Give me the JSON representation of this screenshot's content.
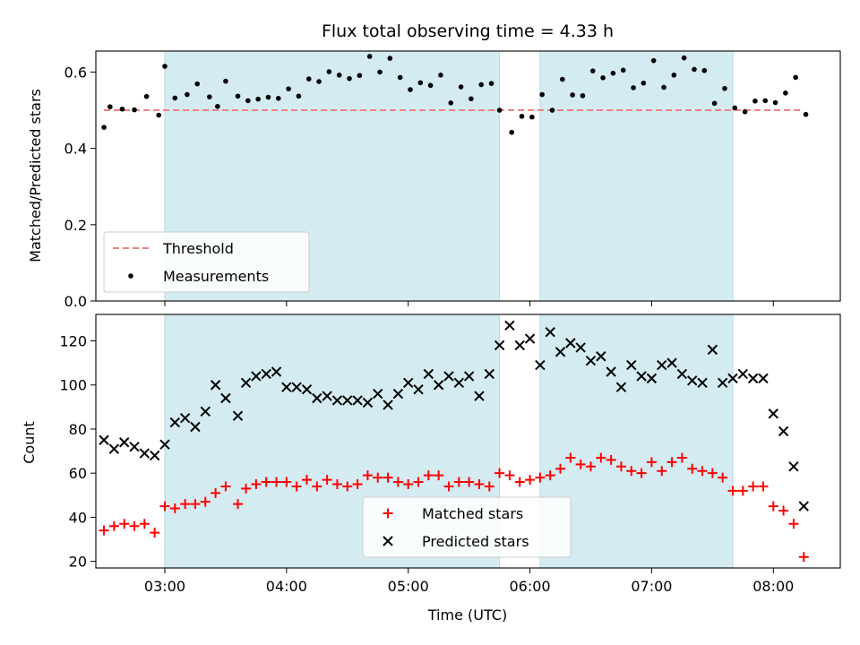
{
  "chart_data": [
    {
      "type": "scatter",
      "title": "Flux total observing time = 4.33 h",
      "ylabel": "Matched/Predicted stars",
      "xlim": [
        "02:26",
        "08:33"
      ],
      "ylim": [
        0,
        0.655
      ],
      "yticks": [
        "0.0",
        "0.2",
        "0.4",
        "0.6"
      ],
      "grid": false,
      "legend_position": "lower-left",
      "shaded_intervals": [
        [
          "03:00",
          "05:45"
        ],
        [
          "06:05",
          "07:40"
        ]
      ],
      "shade_color": "#d4ebf2",
      "threshold": {
        "name": "Threshold",
        "value": 0.5,
        "x_range": [
          "02:30",
          "08:15"
        ],
        "color": "#f08080",
        "style": "dashed"
      },
      "series": [
        {
          "name": "Measurements",
          "marker": "dot",
          "color": "#000000",
          "points": [
            [
              "02:30",
              0.455
            ],
            [
              "02:33",
              0.509
            ],
            [
              "02:39",
              0.503
            ],
            [
              "02:45",
              0.501
            ],
            [
              "02:51",
              0.536
            ],
            [
              "02:57",
              0.487
            ],
            [
              "03:00",
              0.615
            ],
            [
              "03:05",
              0.532
            ],
            [
              "03:11",
              0.541
            ],
            [
              "03:16",
              0.569
            ],
            [
              "03:22",
              0.535
            ],
            [
              "03:26",
              0.51
            ],
            [
              "03:30",
              0.576
            ],
            [
              "03:36",
              0.537
            ],
            [
              "03:41",
              0.525
            ],
            [
              "03:46",
              0.529
            ],
            [
              "03:51",
              0.534
            ],
            [
              "03:56",
              0.531
            ],
            [
              "04:01",
              0.556
            ],
            [
              "04:06",
              0.537
            ],
            [
              "04:11",
              0.582
            ],
            [
              "04:16",
              0.575
            ],
            [
              "04:21",
              0.601
            ],
            [
              "04:26",
              0.592
            ],
            [
              "04:31",
              0.583
            ],
            [
              "04:36",
              0.591
            ],
            [
              "04:41",
              0.641
            ],
            [
              "04:46",
              0.6
            ],
            [
              "04:51",
              0.636
            ],
            [
              "04:56",
              0.586
            ],
            [
              "05:01",
              0.554
            ],
            [
              "05:06",
              0.572
            ],
            [
              "05:11",
              0.565
            ],
            [
              "05:16",
              0.592
            ],
            [
              "05:21",
              0.519
            ],
            [
              "05:26",
              0.561
            ],
            [
              "05:31",
              0.53
            ],
            [
              "05:36",
              0.567
            ],
            [
              "05:41",
              0.57
            ],
            [
              "05:45",
              0.5
            ],
            [
              "05:51",
              0.442
            ],
            [
              "05:56",
              0.484
            ],
            [
              "06:01",
              0.482
            ],
            [
              "06:06",
              0.541
            ],
            [
              "06:11",
              0.5
            ],
            [
              "06:16",
              0.581
            ],
            [
              "06:21",
              0.54
            ],
            [
              "06:26",
              0.538
            ],
            [
              "06:31",
              0.603
            ],
            [
              "06:36",
              0.585
            ],
            [
              "06:41",
              0.597
            ],
            [
              "06:46",
              0.605
            ],
            [
              "06:51",
              0.559
            ],
            [
              "06:56",
              0.571
            ],
            [
              "07:01",
              0.63
            ],
            [
              "07:06",
              0.56
            ],
            [
              "07:11",
              0.592
            ],
            [
              "07:16",
              0.637
            ],
            [
              "07:21",
              0.607
            ],
            [
              "07:26",
              0.604
            ],
            [
              "07:31",
              0.518
            ],
            [
              "07:36",
              0.557
            ],
            [
              "07:41",
              0.506
            ],
            [
              "07:46",
              0.496
            ],
            [
              "07:51",
              0.524
            ],
            [
              "07:56",
              0.525
            ],
            [
              "08:01",
              0.52
            ],
            [
              "08:06",
              0.545
            ],
            [
              "08:11",
              0.586
            ],
            [
              "08:16",
              0.489
            ]
          ]
        }
      ]
    },
    {
      "type": "scatter",
      "xlabel": "Time (UTC)",
      "ylabel": "Count",
      "xlim": [
        "02:26",
        "08:33"
      ],
      "ylim": [
        17,
        132
      ],
      "yticks": [
        "20",
        "40",
        "60",
        "80",
        "100",
        "120"
      ],
      "xticks": [
        "03:00",
        "04:00",
        "05:00",
        "06:00",
        "07:00",
        "08:00"
      ],
      "grid": false,
      "legend_position": "lower-center",
      "shaded_intervals": [
        [
          "03:00",
          "05:45"
        ],
        [
          "06:05",
          "07:40"
        ]
      ],
      "series": [
        {
          "name": "Matched stars",
          "marker": "plus",
          "color": "#ff0000",
          "points": [
            [
              "02:30",
              34
            ],
            [
              "02:35",
              36
            ],
            [
              "02:40",
              37
            ],
            [
              "02:45",
              36
            ],
            [
              "02:50",
              37
            ],
            [
              "02:55",
              33
            ],
            [
              "03:00",
              45
            ],
            [
              "03:05",
              44
            ],
            [
              "03:10",
              46
            ],
            [
              "03:15",
              46
            ],
            [
              "03:20",
              47
            ],
            [
              "03:25",
              51
            ],
            [
              "03:30",
              54
            ],
            [
              "03:36",
              46
            ],
            [
              "03:40",
              53
            ],
            [
              "03:45",
              55
            ],
            [
              "03:50",
              56
            ],
            [
              "03:55",
              56
            ],
            [
              "04:00",
              56
            ],
            [
              "04:05",
              54
            ],
            [
              "04:10",
              57
            ],
            [
              "04:15",
              54
            ],
            [
              "04:20",
              57
            ],
            [
              "04:25",
              55
            ],
            [
              "04:30",
              54
            ],
            [
              "04:35",
              55
            ],
            [
              "04:40",
              59
            ],
            [
              "04:45",
              58
            ],
            [
              "04:50",
              58
            ],
            [
              "04:55",
              56
            ],
            [
              "05:00",
              55
            ],
            [
              "05:05",
              56
            ],
            [
              "05:10",
              59
            ],
            [
              "05:15",
              59
            ],
            [
              "05:20",
              54
            ],
            [
              "05:25",
              56
            ],
            [
              "05:30",
              56
            ],
            [
              "05:35",
              55
            ],
            [
              "05:40",
              54
            ],
            [
              "05:45",
              60
            ],
            [
              "05:50",
              59
            ],
            [
              "05:55",
              56
            ],
            [
              "06:00",
              57
            ],
            [
              "06:05",
              58
            ],
            [
              "06:10",
              59
            ],
            [
              "06:15",
              62
            ],
            [
              "06:20",
              67
            ],
            [
              "06:25",
              64
            ],
            [
              "06:30",
              63
            ],
            [
              "06:35",
              67
            ],
            [
              "06:40",
              66
            ],
            [
              "06:45",
              63
            ],
            [
              "06:50",
              61
            ],
            [
              "06:55",
              60
            ],
            [
              "07:00",
              65
            ],
            [
              "07:05",
              61
            ],
            [
              "07:10",
              65
            ],
            [
              "07:15",
              67
            ],
            [
              "07:20",
              62
            ],
            [
              "07:25",
              61
            ],
            [
              "07:30",
              60
            ],
            [
              "07:35",
              58
            ],
            [
              "07:40",
              52
            ],
            [
              "07:45",
              52
            ],
            [
              "07:50",
              54
            ],
            [
              "07:55",
              54
            ],
            [
              "08:00",
              45
            ],
            [
              "08:05",
              43
            ],
            [
              "08:10",
              37
            ],
            [
              "08:15",
              22
            ]
          ]
        },
        {
          "name": "Predicted stars",
          "marker": "x",
          "color": "#000000",
          "points": [
            [
              "02:30",
              75
            ],
            [
              "02:35",
              71
            ],
            [
              "02:40",
              74
            ],
            [
              "02:45",
              72
            ],
            [
              "02:50",
              69
            ],
            [
              "02:55",
              68
            ],
            [
              "03:00",
              73
            ],
            [
              "03:05",
              83
            ],
            [
              "03:10",
              85
            ],
            [
              "03:15",
              81
            ],
            [
              "03:20",
              88
            ],
            [
              "03:25",
              100
            ],
            [
              "03:30",
              94
            ],
            [
              "03:36",
              86
            ],
            [
              "03:40",
              101
            ],
            [
              "03:45",
              104
            ],
            [
              "03:50",
              105
            ],
            [
              "03:55",
              106
            ],
            [
              "04:00",
              99
            ],
            [
              "04:05",
              99
            ],
            [
              "04:10",
              98
            ],
            [
              "04:15",
              94
            ],
            [
              "04:20",
              95
            ],
            [
              "04:25",
              93
            ],
            [
              "04:30",
              93
            ],
            [
              "04:35",
              93
            ],
            [
              "04:40",
              92
            ],
            [
              "04:45",
              96
            ],
            [
              "04:50",
              91
            ],
            [
              "04:55",
              96
            ],
            [
              "05:00",
              101
            ],
            [
              "05:05",
              98
            ],
            [
              "05:10",
              105
            ],
            [
              "05:15",
              100
            ],
            [
              "05:20",
              104
            ],
            [
              "05:25",
              101
            ],
            [
              "05:30",
              104
            ],
            [
              "05:35",
              95
            ],
            [
              "05:40",
              105
            ],
            [
              "05:45",
              118
            ],
            [
              "05:50",
              127
            ],
            [
              "05:55",
              118
            ],
            [
              "06:00",
              121
            ],
            [
              "06:05",
              109
            ],
            [
              "06:10",
              124
            ],
            [
              "06:15",
              115
            ],
            [
              "06:20",
              119
            ],
            [
              "06:25",
              117
            ],
            [
              "06:30",
              111
            ],
            [
              "06:35",
              113
            ],
            [
              "06:40",
              106
            ],
            [
              "06:45",
              99
            ],
            [
              "06:50",
              109
            ],
            [
              "06:55",
              104
            ],
            [
              "07:00",
              103
            ],
            [
              "07:05",
              109
            ],
            [
              "07:10",
              110
            ],
            [
              "07:15",
              105
            ],
            [
              "07:20",
              102
            ],
            [
              "07:25",
              101
            ],
            [
              "07:30",
              116
            ],
            [
              "07:35",
              101
            ],
            [
              "07:40",
              103
            ],
            [
              "07:45",
              105
            ],
            [
              "07:50",
              103
            ],
            [
              "07:55",
              103
            ],
            [
              "08:00",
              87
            ],
            [
              "08:05",
              79
            ],
            [
              "08:10",
              63
            ],
            [
              "08:15",
              45
            ]
          ]
        }
      ]
    }
  ]
}
